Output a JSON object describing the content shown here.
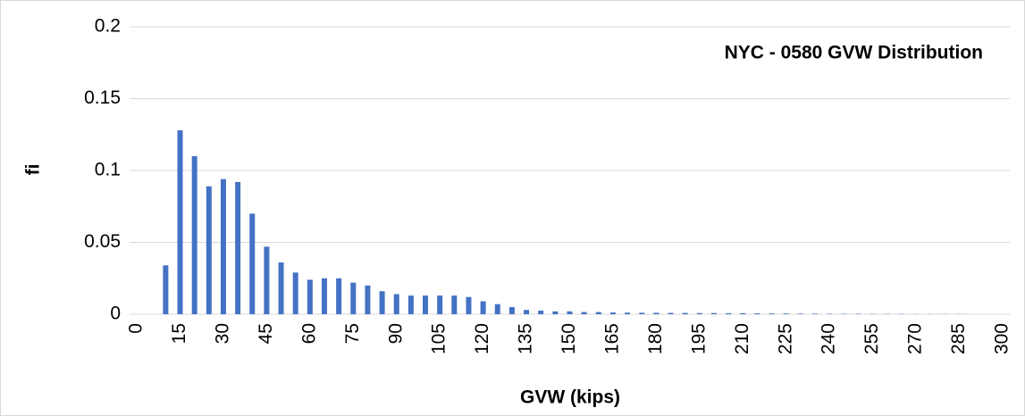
{
  "chart_data": {
    "type": "bar",
    "title": "NYC - 0580 GVW Distribution",
    "x_label": "GVW (kips)",
    "y_label": "fi",
    "categories": [
      "0",
      null,
      null,
      "15",
      null,
      null,
      "30",
      null,
      null,
      "45",
      null,
      null,
      "60",
      null,
      null,
      "75",
      null,
      null,
      "90",
      null,
      null,
      "105",
      null,
      null,
      "120",
      null,
      null,
      "135",
      null,
      null,
      "150",
      null,
      null,
      "165",
      null,
      null,
      "180",
      null,
      null,
      "195",
      null,
      null,
      "210",
      null,
      null,
      "225",
      null,
      null,
      "240",
      null,
      null,
      "255",
      null,
      null,
      "270",
      null,
      null,
      "285",
      null,
      null,
      "300"
    ],
    "values": [
      0,
      0,
      0.034,
      0.128,
      0.11,
      0.089,
      0.094,
      0.092,
      0.07,
      0.047,
      0.036,
      0.029,
      0.024,
      0.025,
      0.025,
      0.022,
      0.02,
      0.016,
      0.014,
      0.013,
      0.013,
      0.013,
      0.013,
      0.012,
      0.009,
      0.007,
      0.005,
      0.003,
      0.0025,
      0.002,
      0.002,
      0.0015,
      0.0015,
      0.0012,
      0.0011,
      0.001,
      0.001,
      0.0009,
      0.0009,
      0.0008,
      0.0008,
      0.0007,
      0.0007,
      0.0006,
      0.0005,
      0.0005,
      0.0004,
      0.0004,
      0.0003,
      0.0003,
      0.0003,
      0.0002,
      0.0002,
      0.0002,
      0.0001,
      0.0001,
      0.0001,
      0.0001,
      0,
      0,
      0
    ],
    "color": "#4472c4",
    "ylim": [
      0,
      0.2
    ],
    "yticks": [
      0,
      0.05,
      0.1,
      0.15,
      0.2
    ],
    "grid": true
  }
}
